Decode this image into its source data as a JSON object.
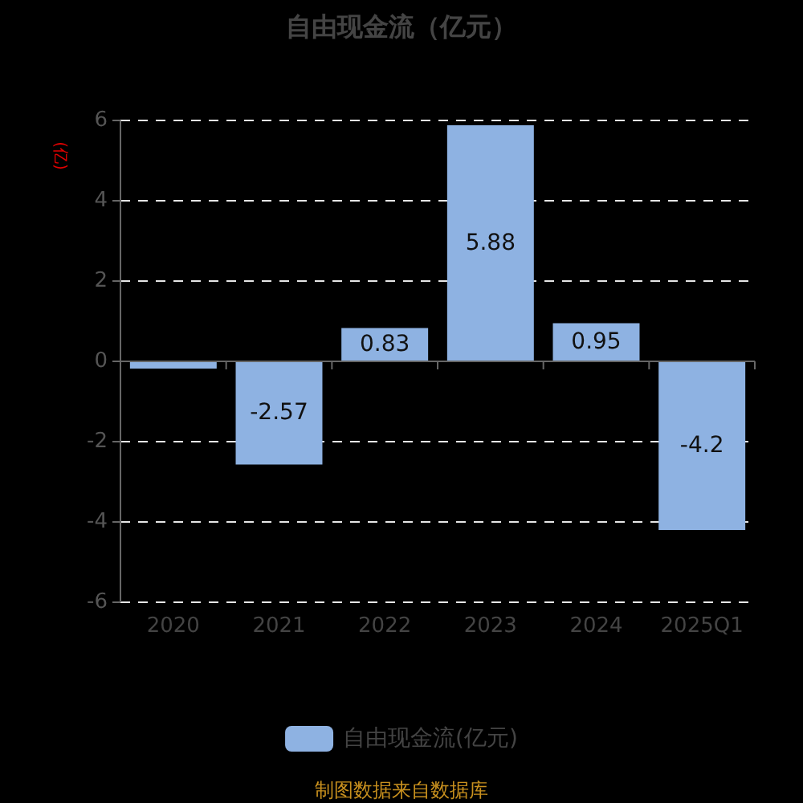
{
  "chart_data": {
    "type": "bar",
    "title": "自由现金流（亿元）",
    "ylabel": "(亿)",
    "categories": [
      "2020",
      "2021",
      "2022",
      "2023",
      "2024",
      "2025Q1"
    ],
    "series": [
      {
        "name": "自由现金流(亿元)",
        "color": "#8eb2e2",
        "values": [
          -0.18,
          -2.57,
          0.83,
          5.88,
          0.95,
          -4.2
        ],
        "value_labels": [
          null,
          "-2.57",
          "0.83",
          "5.88",
          "0.95",
          "-4.2"
        ]
      }
    ],
    "ylim": [
      -6,
      6
    ],
    "yticks": [
      -6,
      -4,
      -2,
      0,
      2,
      4,
      6
    ],
    "grid": "y",
    "legend": "bottom",
    "annotations": [
      "制图数据来自数据库"
    ]
  }
}
